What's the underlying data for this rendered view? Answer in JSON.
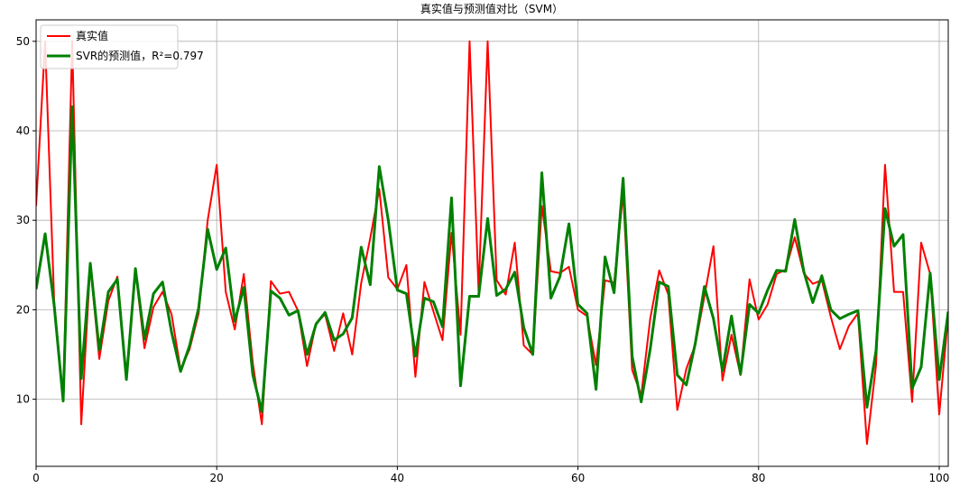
{
  "chart_data": {
    "type": "line",
    "title": "真实值与预测值对比（SVM）",
    "x": [
      0,
      1,
      2,
      3,
      4,
      5,
      6,
      7,
      8,
      9,
      10,
      11,
      12,
      13,
      14,
      15,
      16,
      17,
      18,
      19,
      20,
      21,
      22,
      23,
      24,
      25,
      26,
      27,
      28,
      29,
      30,
      31,
      32,
      33,
      34,
      35,
      36,
      37,
      38,
      39,
      40,
      41,
      42,
      43,
      44,
      45,
      46,
      47,
      48,
      49,
      50,
      51,
      52,
      53,
      54,
      55,
      56,
      57,
      58,
      59,
      60,
      61,
      62,
      63,
      64,
      65,
      66,
      67,
      68,
      69,
      70,
      71,
      72,
      73,
      74,
      75,
      76,
      77,
      78,
      79,
      80,
      81,
      82,
      83,
      84,
      85,
      86,
      87,
      88,
      89,
      90,
      91,
      92,
      93,
      94,
      95,
      96,
      97,
      98,
      99,
      100,
      101
    ],
    "series": [
      {
        "name": "真实值",
        "color": "#ff0000",
        "width": 2,
        "values": [
          31.6,
          50,
          21,
          10,
          50,
          7.2,
          25,
          14.5,
          21,
          23.7,
          12.5,
          24.4,
          15.7,
          20.3,
          22,
          19.5,
          13.3,
          15.6,
          19.6,
          30,
          36.2,
          22,
          17.8,
          24,
          14,
          7.2,
          23.2,
          21.8,
          22,
          19.9,
          13.7,
          18.5,
          19.5,
          15.4,
          19.6,
          15,
          23,
          28,
          33.5,
          23.6,
          22.3,
          25,
          12.5,
          23.1,
          19.8,
          16.6,
          28.6,
          17.2,
          50,
          22,
          50,
          23.3,
          21.7,
          27.5,
          16,
          15,
          31.6,
          24.3,
          24.1,
          24.8,
          20,
          19.3,
          13.8,
          23.3,
          23,
          33,
          13.3,
          10.4,
          19,
          24.4,
          21.7,
          8.8,
          13.4,
          16.1,
          21.5,
          27.1,
          12.1,
          17.2,
          12.7,
          23.4,
          18.9,
          20.6,
          24,
          24.5,
          28.1,
          24.1,
          22.9,
          23.3,
          19.2,
          15.6,
          18.2,
          19.6,
          5,
          13.8,
          36.2,
          22,
          22,
          9.7,
          27.5,
          24,
          8.3,
          19.4
        ]
      },
      {
        "name": "SVR的预测值，R²=0.797",
        "color": "#008000",
        "width": 3,
        "values": [
          22.3,
          28.5,
          20.5,
          9.8,
          42.7,
          12.3,
          25.2,
          15.5,
          22,
          23.4,
          12.2,
          24.6,
          16.7,
          21.8,
          23.1,
          17.5,
          13.1,
          16,
          20.2,
          29,
          24.5,
          26.9,
          18.7,
          22.5,
          12.7,
          8.6,
          22.1,
          21.3,
          19.4,
          19.9,
          15,
          18.4,
          19.7,
          16.6,
          17.3,
          19.1,
          27,
          22.8,
          36,
          30,
          22.2,
          21.8,
          14.8,
          21.3,
          20.9,
          18.1,
          32.5,
          11.5,
          21.5,
          21.5,
          30.2,
          21.6,
          22.3,
          24.2,
          18,
          15,
          35.3,
          21.3,
          23.7,
          29.6,
          20.6,
          19.6,
          11.1,
          25.9,
          21.9,
          34.7,
          14.8,
          9.7,
          15.6,
          23.1,
          22.6,
          12.7,
          11.6,
          16.3,
          22.6,
          19,
          13.2,
          19.3,
          12.8,
          20.6,
          19.6,
          22.2,
          24.4,
          24.3,
          30.1,
          24.3,
          20.8,
          23.8,
          20,
          19,
          19.5,
          19.9,
          9.1,
          15.4,
          31.3,
          27.1,
          28.4,
          11.2,
          13.6,
          24.1,
          12.2,
          19.8
        ]
      }
    ],
    "xlim": [
      0,
      101
    ],
    "xticks": [
      0,
      20,
      40,
      60,
      80,
      100
    ],
    "ylim": [
      2.5,
      52.4
    ],
    "yticks": [
      10,
      20,
      30,
      40,
      50
    ],
    "grid": true,
    "legend": "upper left"
  }
}
